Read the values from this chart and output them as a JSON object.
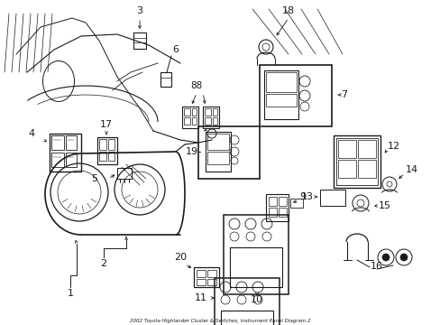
{
  "title": "2002 Toyota Highlander Cluster & Switches, Instrument Panel Diagram 2",
  "bg_color": "#ffffff",
  "line_color": "#1a1a1a",
  "figsize": [
    4.89,
    3.6
  ],
  "dpi": 100
}
